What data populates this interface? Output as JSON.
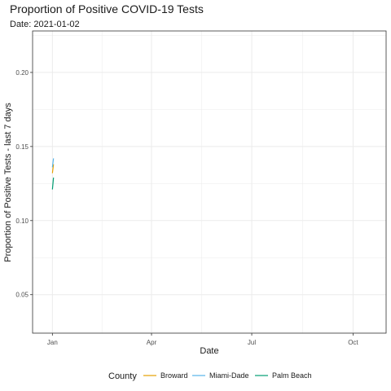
{
  "chart_data": {
    "type": "line",
    "title": "Proportion of Positive COVID-19 Tests",
    "subtitle": "Date: 2021-01-02",
    "xlabel": "Date",
    "ylabel": "Proportion of Positive Tests - last 7 days",
    "x_tick_labels": [
      {
        "date": "2021-01-01",
        "label": "Jan"
      },
      {
        "date": "2021-04-01",
        "label": "Apr"
      },
      {
        "date": "2021-07-01",
        "label": "Jul"
      },
      {
        "date": "2021-10-01",
        "label": "Oct"
      }
    ],
    "xlim": [
      "2020-12-14",
      "2021-10-31"
    ],
    "ylim": [
      0.024,
      0.228
    ],
    "y_ticks": [
      0.05,
      0.1,
      0.15,
      0.2
    ],
    "y_tick_labels": [
      "0.05",
      "0.10",
      "0.15",
      "0.20"
    ],
    "grid": true,
    "legend": {
      "title": "County",
      "position": "bottom"
    },
    "series": [
      {
        "name": "Broward",
        "color": "#E69F00",
        "points": [
          {
            "x": "2021-01-01",
            "y": 0.132
          },
          {
            "x": "2021-01-02",
            "y": 0.138
          }
        ]
      },
      {
        "name": "Miami-Dade",
        "color": "#56B4E9",
        "points": [
          {
            "x": "2021-01-01",
            "y": 0.136
          },
          {
            "x": "2021-01-02",
            "y": 0.142
          }
        ]
      },
      {
        "name": "Palm Beach",
        "color": "#009E73",
        "points": [
          {
            "x": "2021-01-01",
            "y": 0.121
          },
          {
            "x": "2021-01-02",
            "y": 0.129
          }
        ]
      }
    ]
  }
}
